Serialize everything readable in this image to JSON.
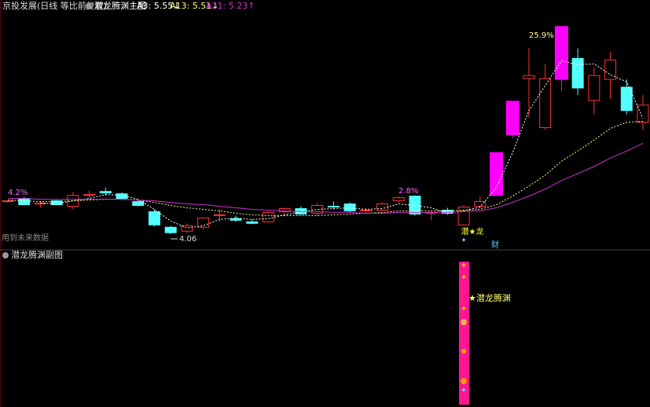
{
  "chart_data": {
    "type": "candlestick",
    "title": "京投发展(日线 等比前复权)",
    "indicator_title": "潜龙腾渊主图",
    "ylim": [
      3.9,
      7.0
    ],
    "candles": {
      "open": [
        4.48,
        4.52,
        4.45,
        4.49,
        4.42,
        4.57,
        4.61,
        4.58,
        4.48,
        4.35,
        4.15,
        4.1,
        4.15,
        4.3,
        4.26,
        4.22,
        4.22,
        4.35,
        4.39,
        4.33,
        4.42,
        4.45,
        4.36,
        4.37,
        4.49,
        4.55,
        4.33,
        4.37,
        4.18,
        4.42,
        4.57,
        5.35,
        6.06,
        5.43,
        6.06,
        6.32,
        5.78,
        6.05,
        5.95,
        5.5
      ],
      "high": [
        4.5,
        4.54,
        4.49,
        4.5,
        4.6,
        4.62,
        4.66,
        4.6,
        4.5,
        4.38,
        4.17,
        4.2,
        4.28,
        4.38,
        4.3,
        4.25,
        4.35,
        4.4,
        4.42,
        4.46,
        4.48,
        4.47,
        4.4,
        4.47,
        4.55,
        4.56,
        4.36,
        4.4,
        4.43,
        4.55,
        5.1,
        5.76,
        6.45,
        6.25,
        6.72,
        6.45,
        6.2,
        6.4,
        6.05,
        5.85
      ],
      "low": [
        4.46,
        4.43,
        4.4,
        4.43,
        4.38,
        4.53,
        4.56,
        4.5,
        4.42,
        4.16,
        4.06,
        4.08,
        4.12,
        4.22,
        4.22,
        4.19,
        4.21,
        4.33,
        4.31,
        4.3,
        4.38,
        4.34,
        4.33,
        4.36,
        4.47,
        4.3,
        4.24,
        4.31,
        4.17,
        4.4,
        4.55,
        5.3,
        5.56,
        5.4,
        5.9,
        5.85,
        5.6,
        5.8,
        5.6,
        5.4
      ],
      "close": [
        4.49,
        4.44,
        4.46,
        4.44,
        4.56,
        4.57,
        4.59,
        4.52,
        4.43,
        4.18,
        4.08,
        4.17,
        4.27,
        4.31,
        4.24,
        4.2,
        4.34,
        4.39,
        4.32,
        4.43,
        4.41,
        4.36,
        4.37,
        4.45,
        4.53,
        4.32,
        4.34,
        4.33,
        4.41,
        4.48,
        5.1,
        5.76,
        6.1,
        6.06,
        6.72,
        5.94,
        6.1,
        6.3,
        5.65,
        5.72
      ]
    },
    "candle_colors": [
      "#ff3232",
      "#54ffff",
      "#ff3232",
      "#54ffff",
      "#ff3232",
      "#ff3232",
      "#54ffff",
      "#54ffff",
      "#54ffff",
      "#54ffff",
      "#54ffff",
      "#ff3232",
      "#ff3232",
      "#ff3232",
      "#54ffff",
      "#54ffff",
      "#ff3232",
      "#ff3232",
      "#54ffff",
      "#ff3232",
      "#54ffff",
      "#54ffff",
      "#ff3232",
      "#ff3232",
      "#ff3232",
      "#54ffff",
      "#ff3232",
      "#54ffff",
      "#ff3232",
      "#ff3232",
      "#ff00ff",
      "#ff00ff",
      "#ff3232",
      "#ff3232",
      "#ff00ff",
      "#54ffff",
      "#ff3232",
      "#ff3232",
      "#54ffff",
      "#ff3232"
    ],
    "series": [
      {
        "name": "A3: 5.55↓",
        "color": "#ffffff",
        "dashed": true,
        "values": [
          null,
          null,
          4.46,
          4.45,
          4.49,
          4.52,
          4.57,
          4.56,
          4.51,
          4.38,
          4.23,
          4.14,
          4.17,
          4.25,
          4.27,
          4.25,
          4.26,
          4.31,
          4.35,
          4.38,
          4.39,
          4.4,
          4.38,
          4.39,
          4.45,
          4.43,
          4.4,
          4.33,
          4.36,
          4.41,
          4.66,
          5.11,
          5.65,
          5.97,
          6.29,
          6.24,
          6.25,
          6.11,
          6.02,
          5.55
        ]
      },
      {
        "name": "A13: 5.51↓",
        "color": "#ffff80",
        "dashed": true,
        "values": [
          4.5,
          4.49,
          4.48,
          4.48,
          4.49,
          4.5,
          4.51,
          4.51,
          4.5,
          4.47,
          4.43,
          4.4,
          4.38,
          4.36,
          4.33,
          4.31,
          4.3,
          4.3,
          4.3,
          4.3,
          4.31,
          4.32,
          4.33,
          4.34,
          4.36,
          4.36,
          4.36,
          4.36,
          4.37,
          4.38,
          4.44,
          4.55,
          4.68,
          4.82,
          5.0,
          5.13,
          5.27,
          5.42,
          5.5,
          5.51
        ]
      },
      {
        "name": "A21: 5.23↑",
        "color": "#cc33cc",
        "dashed": false,
        "values": [
          4.52,
          4.52,
          4.51,
          4.51,
          4.51,
          4.51,
          4.51,
          4.51,
          4.5,
          4.49,
          4.47,
          4.45,
          4.44,
          4.42,
          4.4,
          4.38,
          4.37,
          4.36,
          4.35,
          4.35,
          4.34,
          4.34,
          4.33,
          4.33,
          4.34,
          4.34,
          4.34,
          4.34,
          4.35,
          4.36,
          4.4,
          4.47,
          4.55,
          4.64,
          4.75,
          4.84,
          4.93,
          5.04,
          5.13,
          5.23
        ]
      }
    ],
    "annotations": [
      "4.2%",
      "2.8%",
      "25.9%",
      "4.06",
      "潜★龙",
      "财",
      "用到未来数据"
    ],
    "sub_panel": {
      "title": "潜龙腾渊副图",
      "signal_label": "★潜龙腾渊"
    }
  }
}
